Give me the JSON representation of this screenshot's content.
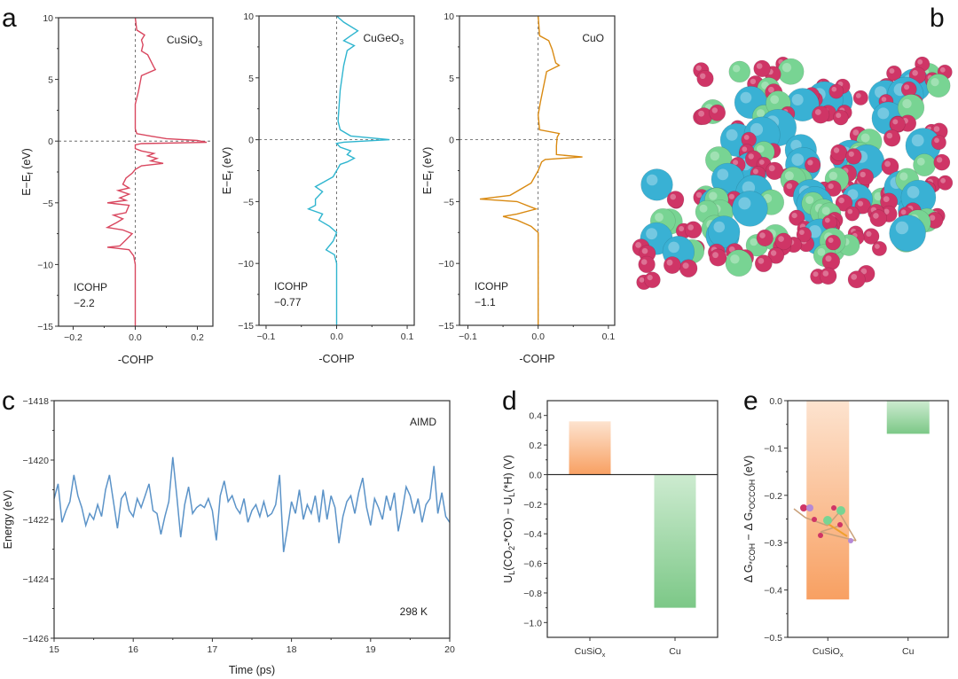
{
  "panel_letters": {
    "a": "a",
    "b": "b",
    "c": "c",
    "d": "d",
    "e": "e"
  },
  "colors": {
    "cusio3": "#d9475f",
    "cugeo3": "#2fb5cf",
    "cuo": "#d98a12",
    "aimd": "#5b93c8",
    "orange_bar": "#f8a062",
    "green_bar": "#80c98b",
    "atom_o": "#cf3566",
    "atom_cu": "#39b1d4",
    "atom_si": "#78d493"
  },
  "chart_data": [
    {
      "id": "a1",
      "type": "line",
      "annotation": "CuSiO₃",
      "annotation_main": "CuSiO",
      "annotation_sub": "3",
      "icohp_label": "ICOHP",
      "icohp_value": "−2.2",
      "xlabel": "-COHP",
      "ylabel_main": "E−E",
      "ylabel_sub": "f",
      "ylabel_unit": " (eV)",
      "xlim": [
        -0.247,
        0.25
      ],
      "ylim": [
        -15,
        10
      ],
      "xticks": [
        -0.2,
        0,
        0.2
      ],
      "xtick_labels": [
        "−0.2",
        "0.0",
        "0.2"
      ],
      "yticks": [
        10,
        5,
        0,
        -5,
        -10,
        -15
      ],
      "ytick_labels": [
        "10",
        "5",
        "0",
        "−5",
        "−10",
        "−15"
      ],
      "reference_lines": {
        "x": 0,
        "y": 0,
        "style": "dashed"
      },
      "series": [
        {
          "color": "#d9475f",
          "points": [
            [
              0,
              10
            ],
            [
              0.005,
              9
            ],
            [
              0.03,
              8.6
            ],
            [
              0.02,
              8.2
            ],
            [
              0.025,
              7.8
            ],
            [
              0.02,
              7.3
            ],
            [
              0.04,
              7.0
            ],
            [
              0.06,
              6.0
            ],
            [
              0.065,
              5.8
            ],
            [
              0.02,
              5.3
            ],
            [
              0.01,
              4
            ],
            [
              0,
              3
            ],
            [
              0,
              1
            ],
            [
              0.005,
              0.6
            ],
            [
              0.05,
              0.4
            ],
            [
              0.1,
              0.2
            ],
            [
              0.2,
              0.05
            ],
            [
              0.23,
              -0.1
            ],
            [
              0.02,
              -0.2
            ],
            [
              0,
              -0.3
            ],
            [
              0,
              -0.6
            ],
            [
              0.02,
              -0.8
            ],
            [
              0.06,
              -1
            ],
            [
              0.04,
              -1.2
            ],
            [
              0.07,
              -1.4
            ],
            [
              0.05,
              -1.6
            ],
            [
              0.09,
              -1.8
            ],
            [
              0.02,
              -2.0
            ],
            [
              0,
              -2.3
            ],
            [
              -0.01,
              -2.6
            ],
            [
              -0.03,
              -3
            ],
            [
              -0.04,
              -3.5
            ],
            [
              -0.02,
              -3.8
            ],
            [
              -0.055,
              -4
            ],
            [
              -0.02,
              -4.3
            ],
            [
              -0.05,
              -4.6
            ],
            [
              -0.03,
              -4.8
            ],
            [
              -0.09,
              -5
            ],
            [
              -0.02,
              -5.2
            ],
            [
              -0.03,
              -5.8
            ],
            [
              -0.07,
              -6
            ],
            [
              -0.04,
              -6.3
            ],
            [
              -0.06,
              -6.6
            ],
            [
              -0.09,
              -7
            ],
            [
              -0.04,
              -7.2
            ],
            [
              -0.01,
              -7.5
            ],
            [
              -0.03,
              -8
            ],
            [
              -0.05,
              -8.5
            ],
            [
              -0.09,
              -8.6
            ],
            [
              -0.02,
              -8.8
            ],
            [
              -0.005,
              -9.3
            ],
            [
              0,
              -10
            ],
            [
              0,
              -15
            ]
          ]
        }
      ]
    },
    {
      "id": "a2",
      "type": "line",
      "annotation": "CuGeO₃",
      "annotation_main": "CuGeO",
      "annotation_sub": "3",
      "icohp_label": "ICOHP",
      "icohp_value": "−0.77",
      "xlabel": "-COHP",
      "ylabel_main": "E−E",
      "ylabel_sub": "f",
      "ylabel_unit": " (eV)",
      "xlim": [
        -0.11,
        0.11
      ],
      "ylim": [
        -15,
        10
      ],
      "xticks": [
        -0.1,
        0,
        0.1
      ],
      "xtick_labels": [
        "−0.1",
        "0.0",
        "0.1"
      ],
      "yticks": [
        10,
        5,
        0,
        -5,
        -10,
        -15
      ],
      "ytick_labels": [
        "10",
        "5",
        "0",
        "−5",
        "−10",
        "−15"
      ],
      "reference_lines": {
        "x": 0,
        "y": 0,
        "style": "dashed"
      },
      "series": [
        {
          "color": "#2fb5cf",
          "points": [
            [
              0,
              10
            ],
            [
              0.01,
              9.5
            ],
            [
              0.03,
              8.8
            ],
            [
              0.02,
              8.4
            ],
            [
              0.01,
              8.0
            ],
            [
              0.025,
              7.6
            ],
            [
              0.015,
              7.2
            ],
            [
              0.01,
              6
            ],
            [
              0.005,
              4
            ],
            [
              0.002,
              1.5
            ],
            [
              0.005,
              0.8
            ],
            [
              0.02,
              0.3
            ],
            [
              0.075,
              0
            ],
            [
              0.01,
              -0.2
            ],
            [
              0,
              -0.3
            ],
            [
              0.005,
              -0.6
            ],
            [
              0.02,
              -0.9
            ],
            [
              0.015,
              -1.2
            ],
            [
              0.025,
              -1.5
            ],
            [
              0.015,
              -1.8
            ],
            [
              0.005,
              -2.0
            ],
            [
              0,
              -2.5
            ],
            [
              -0.005,
              -3
            ],
            [
              -0.03,
              -3.8
            ],
            [
              -0.02,
              -4.2
            ],
            [
              -0.03,
              -4.8
            ],
            [
              -0.03,
              -5.3
            ],
            [
              -0.04,
              -5.6
            ],
            [
              -0.02,
              -6
            ],
            [
              -0.025,
              -6.5
            ],
            [
              -0.01,
              -7
            ],
            [
              0,
              -7.5
            ],
            [
              -0.005,
              -8.2
            ],
            [
              -0.015,
              -8.9
            ],
            [
              -0.003,
              -9.3
            ],
            [
              0,
              -10
            ],
            [
              0,
              -15
            ]
          ]
        }
      ]
    },
    {
      "id": "a3",
      "type": "line",
      "annotation": "CuO",
      "annotation_main": "CuO",
      "annotation_sub": "",
      "icohp_label": "ICOHP",
      "icohp_value": "−1.1",
      "xlabel": "-COHP",
      "ylabel_main": "E−E",
      "ylabel_sub": "f",
      "ylabel_unit": " (eV)",
      "xlim": [
        -0.112,
        0.109
      ],
      "ylim": [
        -15,
        10
      ],
      "xticks": [
        -0.1,
        0,
        0.1
      ],
      "xtick_labels": [
        "−0.1",
        "0.0",
        "0.1"
      ],
      "yticks": [
        10,
        5,
        0,
        -5,
        -10,
        -15
      ],
      "ytick_labels": [
        "10",
        "5",
        "0",
        "−5",
        "−10",
        "−15"
      ],
      "reference_lines": {
        "x": 0,
        "y": 0,
        "style": "dashed"
      },
      "series": [
        {
          "color": "#d98a12",
          "points": [
            [
              0,
              10
            ],
            [
              0.002,
              8.4
            ],
            [
              0.015,
              8.0
            ],
            [
              0.02,
              7.3
            ],
            [
              0.025,
              6.2
            ],
            [
              0.03,
              6.0
            ],
            [
              0.012,
              5.5
            ],
            [
              0.003,
              3
            ],
            [
              0,
              2
            ],
            [
              0.002,
              0.8
            ],
            [
              0.03,
              0.5
            ],
            [
              0.027,
              0.2
            ],
            [
              0.026,
              -0.5
            ],
            [
              0.026,
              -1.2
            ],
            [
              0.063,
              -1.4
            ],
            [
              0.01,
              -1.6
            ],
            [
              0.005,
              -1.8
            ],
            [
              0,
              -2.5
            ],
            [
              -0.01,
              -3.5
            ],
            [
              -0.04,
              -4.5
            ],
            [
              -0.083,
              -4.8
            ],
            [
              -0.03,
              -5.0
            ],
            [
              -0.003,
              -5.6
            ],
            [
              -0.03,
              -6.0
            ],
            [
              -0.05,
              -6.2
            ],
            [
              -0.03,
              -6.5
            ],
            [
              -0.01,
              -7
            ],
            [
              0,
              -7.5
            ],
            [
              0,
              -15
            ]
          ]
        }
      ]
    },
    {
      "id": "c",
      "type": "line",
      "annotation": "AIMD",
      "annotation2": "298 K",
      "xlabel": "Time (ps)",
      "ylabel": "Energy (eV)",
      "xlim": [
        15,
        20
      ],
      "ylim": [
        -1426,
        -1418
      ],
      "xticks": [
        15,
        16,
        17,
        18,
        19,
        20
      ],
      "xtick_labels": [
        "15",
        "16",
        "17",
        "18",
        "19",
        "20"
      ],
      "yticks": [
        -1418,
        -1420,
        -1422,
        -1424,
        -1426
      ],
      "ytick_labels": [
        "−1418",
        "−1420",
        "−1422",
        "−1424",
        "−1426"
      ],
      "x_start": 15,
      "x_step": 0.05,
      "series": [
        {
          "color": "#5b93c8",
          "values": [
            -1421.3,
            -1420.8,
            -1422.1,
            -1421.7,
            -1421.4,
            -1420.5,
            -1421.2,
            -1421.6,
            -1422.2,
            -1421.8,
            -1422.0,
            -1421.5,
            -1421.9,
            -1421.0,
            -1420.5,
            -1421.4,
            -1422.3,
            -1421.3,
            -1421.1,
            -1421.7,
            -1421.9,
            -1421.3,
            -1421.6,
            -1421.2,
            -1420.8,
            -1421.7,
            -1421.8,
            -1422.5,
            -1421.9,
            -1421.4,
            -1419.9,
            -1421.2,
            -1422.6,
            -1421.5,
            -1420.9,
            -1421.8,
            -1421.6,
            -1421.5,
            -1421.6,
            -1421.3,
            -1421.7,
            -1422.7,
            -1421.2,
            -1420.7,
            -1421.4,
            -1421.2,
            -1421.6,
            -1421.8,
            -1421.3,
            -1422.1,
            -1421.7,
            -1421.5,
            -1421.9,
            -1421.4,
            -1421.9,
            -1421.8,
            -1421.5,
            -1420.5,
            -1423.1,
            -1422.3,
            -1421.4,
            -1421.8,
            -1421.0,
            -1422.0,
            -1421.5,
            -1421.8,
            -1421.2,
            -1422.1,
            -1421.0,
            -1422.0,
            -1421.2,
            -1421.6,
            -1422.8,
            -1421.9,
            -1421.4,
            -1421.2,
            -1421.8,
            -1421.1,
            -1420.6,
            -1421.6,
            -1422.2,
            -1421.3,
            -1421.6,
            -1422.0,
            -1421.2,
            -1421.7,
            -1421.1,
            -1422.4,
            -1421.7,
            -1420.9,
            -1421.2,
            -1421.8,
            -1421.3,
            -1422.1,
            -1421.5,
            -1421.3,
            -1420.2,
            -1421.8,
            -1421.1,
            -1421.9,
            -1422.1
          ]
        }
      ]
    },
    {
      "id": "d",
      "type": "bar",
      "categories": [
        "CuSiOₓ",
        "Cu"
      ],
      "category_main": [
        "CuSiO",
        "Cu"
      ],
      "category_sub": [
        "x",
        ""
      ],
      "values": [
        0.36,
        -0.9
      ],
      "bar_colors": [
        "#f8a062",
        "#80c98b"
      ],
      "ylabel_parts": [
        [
          "U",
          ""
        ],
        [
          "L",
          "sub"
        ],
        [
          "(CO",
          ""
        ],
        [
          "2",
          "sub"
        ],
        [
          "-*CO) − U",
          ""
        ],
        [
          "L",
          "sub"
        ],
        [
          "(*H) (V)",
          ""
        ]
      ],
      "ylim": [
        -1.1,
        0.5
      ],
      "yticks": [
        0.4,
        0.2,
        0,
        -0.2,
        -0.4,
        -0.6,
        -0.8,
        -1.0
      ],
      "ytick_labels": [
        "0.4",
        "0.2",
        "0.0",
        "−0.2",
        "−0.4",
        "−0.6",
        "−0.8",
        "−1.0"
      ],
      "zero_line": true
    },
    {
      "id": "e",
      "type": "bar",
      "categories": [
        "CuSiOₓ",
        "Cu"
      ],
      "category_main": [
        "CuSiO",
        "Cu"
      ],
      "category_sub": [
        "x",
        ""
      ],
      "values": [
        -0.42,
        -0.07
      ],
      "bar_colors": [
        "#f8a062",
        "#80c98b"
      ],
      "ylabel_parts": [
        [
          "Δ G",
          ""
        ],
        [
          "*COH",
          "sub"
        ],
        [
          " − Δ G",
          ""
        ],
        [
          "*OCCOH",
          "sub"
        ],
        [
          " (eV)",
          ""
        ]
      ],
      "ylim": [
        -0.5,
        0
      ],
      "yticks": [
        0,
        -0.1,
        -0.2,
        -0.3,
        -0.4,
        -0.5
      ],
      "ytick_labels": [
        "0.0",
        "−0.1",
        "−0.2",
        "−0.3",
        "−0.4",
        "−0.5"
      ],
      "zero_line": false
    }
  ]
}
